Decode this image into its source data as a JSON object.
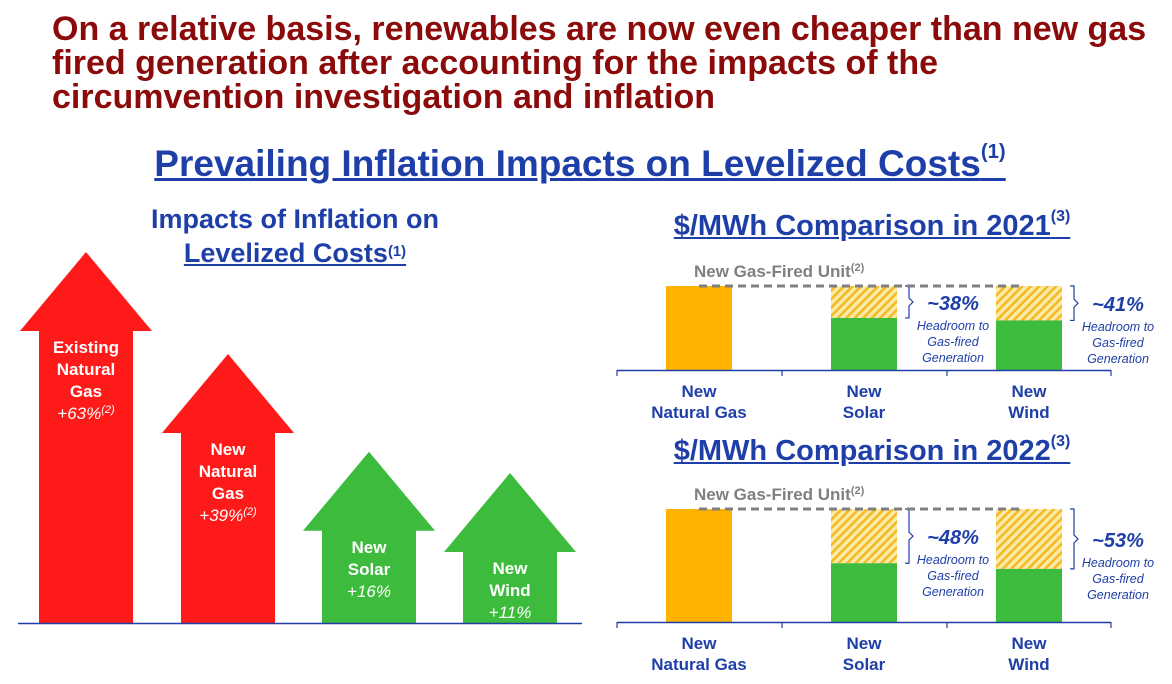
{
  "headline": "On a relative basis, renewables are now even cheaper than new gas fired generation after accounting for the impacts of the circumvention investigation and inflation",
  "subtitle": {
    "text": "Prevailing Inflation Impacts on Levelized Costs",
    "sup": "(1)"
  },
  "left_title": {
    "line1": "Impacts of Inflation on",
    "line2": "Levelized Costs",
    "sup": "(1)"
  },
  "colors": {
    "headline": "#8b0a0a",
    "blue": "#1f3fa8",
    "red_arrow": "#ff1a1a",
    "green": "#3dbb3d",
    "gas_bar": "#ffb300",
    "headroom_hatch": "#f5c542",
    "reference_line": "#7f7f7f"
  },
  "chart_data": [
    {
      "type": "bar",
      "title": "Impacts of Inflation on Levelized Costs",
      "categories": [
        "Existing Natural Gas",
        "New Natural Gas",
        "New Solar",
        "New Wind"
      ],
      "series": [
        {
          "values": [
            63,
            39,
            16,
            11
          ]
        }
      ],
      "value_labels": [
        "+63%",
        "+39%",
        "+16%",
        "+11%"
      ],
      "footnotes": [
        "(2)",
        "(2)",
        "",
        ""
      ],
      "label_lines": [
        [
          "Existing",
          "Natural",
          "Gas"
        ],
        [
          "New",
          "Natural",
          "Gas"
        ],
        [
          "New",
          "Solar"
        ],
        [
          "New",
          "Wind"
        ]
      ],
      "mark": "up-arrow",
      "colors": [
        "red",
        "red",
        "green",
        "green"
      ]
    },
    {
      "type": "bar",
      "title": "$/MWh Comparison in 2021",
      "title_sup": "(3)",
      "categories": [
        "New Natural Gas",
        "New Solar",
        "New Wind"
      ],
      "category_lines": [
        [
          "New",
          "Natural Gas"
        ],
        [
          "New",
          "Solar"
        ],
        [
          "New",
          "Wind"
        ]
      ],
      "values": [
        100,
        62,
        59
      ],
      "headroom_pct": [
        null,
        38,
        41
      ],
      "headroom_labels": [
        "",
        "~38%",
        "~41%"
      ],
      "headroom_note": [
        "Headroom to",
        "Gas-fired",
        "Generation"
      ],
      "reference_line": {
        "label": "New Gas-Fired Unit",
        "sup": "(2)",
        "value": 100
      },
      "ylim": [
        0,
        100
      ]
    },
    {
      "type": "bar",
      "title": "$/MWh Comparison in 2022",
      "title_sup": "(3)",
      "categories": [
        "New Natural Gas",
        "New Solar",
        "New Wind"
      ],
      "category_lines": [
        [
          "New",
          "Natural Gas"
        ],
        [
          "New",
          "Solar"
        ],
        [
          "New",
          "Wind"
        ]
      ],
      "values": [
        100,
        52,
        47
      ],
      "headroom_pct": [
        null,
        48,
        53
      ],
      "headroom_labels": [
        "",
        "~48%",
        "~53%"
      ],
      "headroom_note": [
        "Headroom to",
        "Gas-fired",
        "Generation"
      ],
      "reference_line": {
        "label": "New Gas-Fired Unit",
        "sup": "(2)",
        "value": 100
      },
      "ylim": [
        0,
        100
      ]
    }
  ]
}
